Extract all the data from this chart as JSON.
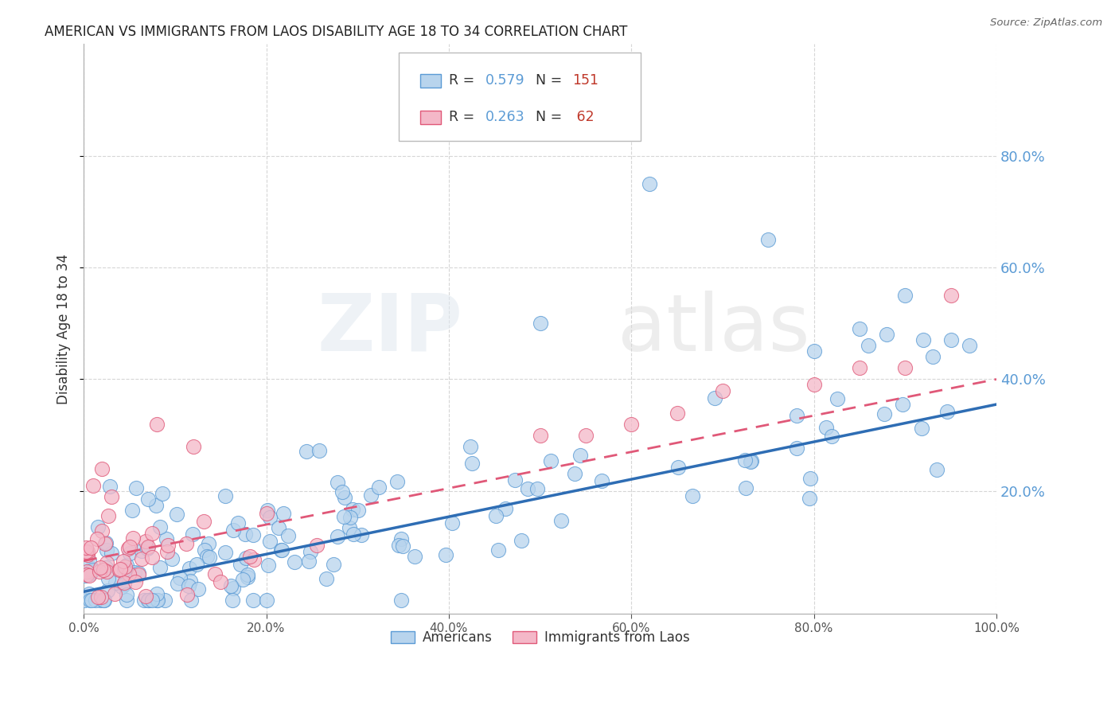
{
  "title": "AMERICAN VS IMMIGRANTS FROM LAOS DISABILITY AGE 18 TO 34 CORRELATION CHART",
  "source_text": "Source: ZipAtlas.com",
  "ylabel": "Disability Age 18 to 34",
  "watermark_zip": "ZIP",
  "watermark_atlas": "atlas",
  "xlim": [
    0.0,
    1.0
  ],
  "ylim": [
    -0.02,
    1.0
  ],
  "xticks": [
    0.0,
    0.2,
    0.4,
    0.6,
    0.8,
    1.0
  ],
  "xtick_labels": [
    "0.0%",
    "20.0%",
    "40.0%",
    "60.0%",
    "80.0%",
    "100.0%"
  ],
  "yticks": [
    0.2,
    0.4,
    0.6,
    0.8
  ],
  "ytick_labels": [
    "20.0%",
    "40.0%",
    "60.0%",
    "80.0%"
  ],
  "legend_R_americans": "0.579",
  "legend_N_americans": "151",
  "legend_R_immigrants": "0.263",
  "legend_N_immigrants": "62",
  "americans_color": "#b8d4ed",
  "americans_edge_color": "#5b9bd5",
  "immigrants_color": "#f4b8c8",
  "immigrants_edge_color": "#e05878",
  "trend_americans_color": "#2e6db4",
  "trend_immigrants_color": "#e05878",
  "background_color": "#ffffff",
  "grid_color": "#cccccc",
  "title_color": "#222222",
  "axis_label_color": "#333333",
  "right_tick_color": "#5b9bd5",
  "legend_value_color": "#5b9bd5",
  "legend_n_color": "#c0392b",
  "trend_am_x0": 0.0,
  "trend_am_y0": 0.02,
  "trend_am_x1": 1.0,
  "trend_am_y1": 0.355,
  "trend_im_x0": 0.0,
  "trend_im_y0": 0.075,
  "trend_im_x1": 1.0,
  "trend_im_y1": 0.4
}
